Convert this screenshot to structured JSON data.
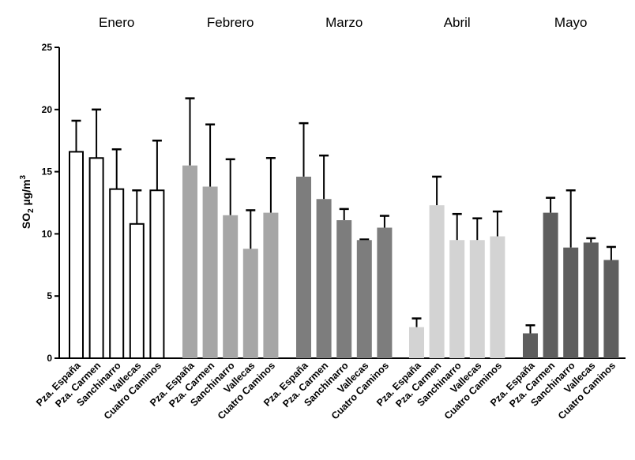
{
  "chart_data": {
    "type": "bar",
    "ylabel": {
      "main": "SO",
      "sub": "2",
      "unit": " µg/m",
      "sup": "3"
    },
    "ylim": [
      0,
      25
    ],
    "yticks": [
      "0",
      "5",
      "10",
      "15",
      "20",
      "25"
    ],
    "grid": false,
    "categories": [
      "Pza. España",
      "Pza. Carmen",
      "Sanchinarro",
      "Vallecas",
      "Cuatro Caminos"
    ],
    "groups": [
      {
        "name": "Enero",
        "style": "outline",
        "color": "#ffffff",
        "values": [
          16.6,
          16.1,
          13.6,
          10.8,
          13.5
        ],
        "errors": [
          2.5,
          3.9,
          3.2,
          2.7,
          4.0
        ]
      },
      {
        "name": "Febrero",
        "style": "filled",
        "color": "#a6a6a6",
        "values": [
          15.5,
          13.8,
          11.5,
          8.8,
          11.7
        ],
        "errors": [
          5.4,
          5.0,
          4.5,
          3.1,
          4.4
        ]
      },
      {
        "name": "Marzo",
        "style": "filled",
        "color": "#7d7d7d",
        "values": [
          14.6,
          12.8,
          11.1,
          9.5,
          10.5
        ],
        "errors": [
          4.3,
          3.5,
          0.9,
          0.05,
          0.95
        ]
      },
      {
        "name": "Abril",
        "style": "filled",
        "color": "#d3d3d3",
        "values": [
          2.5,
          12.3,
          9.5,
          9.5,
          9.8
        ],
        "errors": [
          0.7,
          2.3,
          2.1,
          1.75,
          2.0
        ]
      },
      {
        "name": "Mayo",
        "style": "filled",
        "color": "#5e5e5e",
        "values": [
          2.0,
          11.7,
          8.9,
          9.3,
          7.9
        ],
        "errors": [
          0.65,
          1.2,
          4.6,
          0.35,
          1.05
        ]
      }
    ]
  }
}
